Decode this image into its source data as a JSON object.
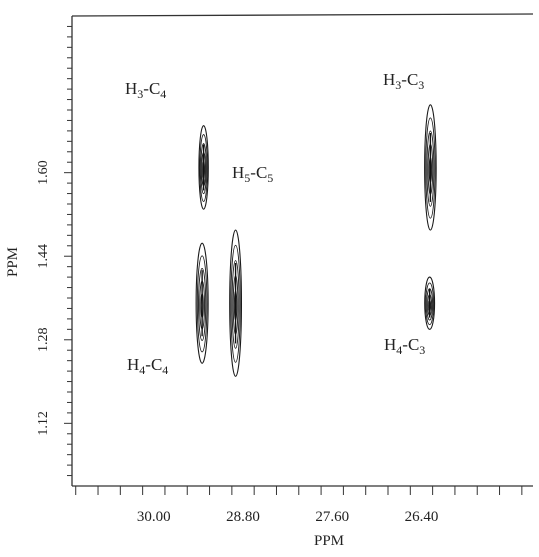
{
  "chart_data": {
    "type": "contour",
    "xlabel": "PPM",
    "ylabel": "PPM",
    "x_reversed": true,
    "xlim": [
      31.1,
      24.9
    ],
    "ylim": [
      1.0,
      1.9
    ],
    "x_ticks": [
      "30.00",
      "28.80",
      "27.60",
      "26.40"
    ],
    "y_ticks": [
      "1.12",
      "1.28",
      "1.44",
      "1.60"
    ],
    "grid": false,
    "peaks": [
      {
        "label": "H",
        "label_sub1": "3",
        "label_mid": "-C",
        "label_sub2": "4",
        "x": 29.33,
        "y": 1.61,
        "y_extent": [
          1.53,
          1.69
        ],
        "level": 0.45
      },
      {
        "label": "H",
        "label_sub1": "3",
        "label_mid": "-C",
        "label_sub2": "3",
        "x": 26.28,
        "y": 1.61,
        "y_extent": [
          1.49,
          1.73
        ],
        "level": 0.9
      },
      {
        "label": "H",
        "label_sub1": "5",
        "label_mid": "-C",
        "label_sub2": "5",
        "x": 28.9,
        "y": 1.35,
        "y_extent": [
          1.23,
          1.51
        ],
        "level": 0.95
      },
      {
        "label": "H",
        "label_sub1": "4",
        "label_mid": "-C",
        "label_sub2": "4",
        "x": 29.35,
        "y": 1.35,
        "y_extent": [
          1.25,
          1.48
        ],
        "level": 1.0
      },
      {
        "label": "H",
        "label_sub1": "4",
        "label_mid": "-C",
        "label_sub2": "3",
        "x": 26.29,
        "y": 1.35,
        "y_extent": [
          1.3,
          1.4
        ],
        "level": 0.55
      }
    ]
  }
}
